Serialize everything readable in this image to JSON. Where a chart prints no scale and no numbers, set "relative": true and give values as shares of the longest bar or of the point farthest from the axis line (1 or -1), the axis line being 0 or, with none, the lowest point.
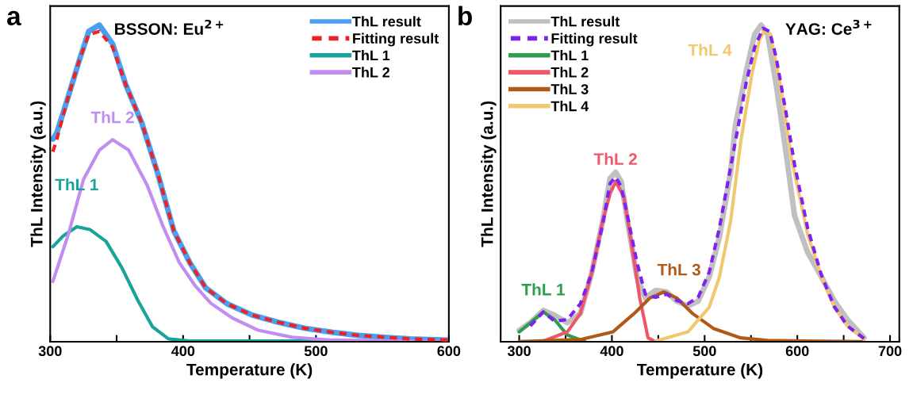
{
  "chart_data": [
    {
      "type": "line",
      "title": "BSSON: Eu$^{2+}$",
      "xlabel": "Temperature (K)",
      "ylabel": "ThL Intensity (a.u.)",
      "relative": true,
      "legend": "top right",
      "grid": false,
      "marker": "none",
      "xlim": [
        300,
        600
      ],
      "xticks": [
        300,
        {
          "value": 350,
          "label": null
        },
        400,
        {
          "value": 450,
          "label": null
        },
        500,
        {
          "value": 550,
          "label": null
        },
        600
      ],
      "annotations": [
        "a",
        "ThL 1",
        "ThL 2"
      ],
      "series": [
        {
          "name": "ThL result",
          "color": "#4a9ff0",
          "line_style": "solid",
          "x": [
            302,
            305,
            314,
            322,
            329,
            337,
            347,
            357,
            369,
            381,
            393,
            405,
            417,
            433,
            452,
            472,
            492,
            512,
            532,
            552,
            571,
            599
          ],
          "values": [
            0.64,
            0.66,
            0.78,
            0.89,
            0.98,
            1.0,
            0.94,
            0.81,
            0.69,
            0.53,
            0.35,
            0.25,
            0.17,
            0.12,
            0.084,
            0.061,
            0.042,
            0.03,
            0.02,
            0.014,
            0.009,
            0.005
          ]
        },
        {
          "name": "Fitting result",
          "color": "#ee2222",
          "line_style": "dashed",
          "x": [
            302,
            305,
            314,
            322,
            329,
            337,
            347,
            357,
            369,
            381,
            393,
            405,
            417,
            433,
            452,
            472,
            492,
            512,
            532,
            552,
            571,
            599
          ],
          "values": [
            0.6,
            0.64,
            0.78,
            0.89,
            0.97,
            0.98,
            0.93,
            0.81,
            0.69,
            0.53,
            0.35,
            0.25,
            0.17,
            0.12,
            0.084,
            0.061,
            0.042,
            0.03,
            0.02,
            0.014,
            0.009,
            0.005
          ]
        },
        {
          "name": "ThL 1",
          "color": "#1aa39a",
          "line_style": "solid",
          "x": [
            302,
            310,
            320,
            330,
            342,
            354,
            366,
            377,
            389,
            405,
            599
          ],
          "values": [
            0.3,
            0.335,
            0.363,
            0.354,
            0.317,
            0.233,
            0.13,
            0.047,
            0.009,
            0.002,
            0.002
          ]
        },
        {
          "name": "ThL 2",
          "color": "#c08ef0",
          "line_style": "solid",
          "x": [
            302,
            314,
            325,
            337,
            347,
            359,
            373,
            385,
            397,
            409,
            421,
            437,
            456,
            482,
            512,
            599
          ],
          "values": [
            0.19,
            0.344,
            0.512,
            0.605,
            0.638,
            0.605,
            0.494,
            0.363,
            0.251,
            0.177,
            0.121,
            0.075,
            0.037,
            0.014,
            0.005,
            0
          ]
        }
      ]
    },
    {
      "type": "line",
      "title": "YAG: Ce$^{3+}$",
      "xlabel": "Temperature (K)",
      "ylabel": "ThL Intensity (a.u.)",
      "relative": true,
      "legend": "top left",
      "grid": false,
      "marker": "none",
      "xlim": [
        280,
        710
      ],
      "xticks": [
        300,
        {
          "value": 350,
          "label": null
        },
        400,
        {
          "value": 450,
          "label": null
        },
        500,
        {
          "value": 550,
          "label": null
        },
        600,
        {
          "value": 650,
          "label": null
        },
        700
      ],
      "annotations": [
        "b",
        "ThL 1",
        "ThL 2",
        "ThL 3",
        "ThL 4"
      ],
      "series": [
        {
          "name": "ThL result",
          "color": "#c0c0c0",
          "line_style": "solid",
          "x": [
            300,
            312,
            326,
            338,
            352,
            366,
            378,
            390,
            398,
            404,
            410,
            418,
            427,
            436,
            447,
            459,
            470,
            482,
            493,
            505,
            516,
            528,
            533,
            545,
            554,
            561,
            568,
            577,
            588,
            597,
            611,
            626,
            640,
            654,
            672
          ],
          "values": [
            0.036,
            0.06,
            0.099,
            0.084,
            0.06,
            0.089,
            0.215,
            0.38,
            0.516,
            0.535,
            0.506,
            0.36,
            0.205,
            0.138,
            0.162,
            0.157,
            0.128,
            0.113,
            0.128,
            0.205,
            0.331,
            0.535,
            0.68,
            0.855,
            0.971,
            1.0,
            0.971,
            0.816,
            0.593,
            0.399,
            0.283,
            0.205,
            0.128,
            0.07,
            0.012
          ]
        },
        {
          "name": "Fitting result",
          "color": "#7f22ee",
          "line_style": "dashed",
          "x": [
            312,
            326,
            338,
            352,
            366,
            378,
            390,
            398,
            404,
            410,
            418,
            427,
            436,
            447,
            459,
            470,
            482,
            493,
            505,
            516,
            528,
            545,
            554,
            563,
            570,
            577,
            588,
            597,
            611,
            626,
            640,
            654,
            672
          ],
          "values": [
            0.05,
            0.094,
            0.065,
            0.07,
            0.12,
            0.215,
            0.37,
            0.5,
            0.52,
            0.49,
            0.38,
            0.25,
            0.15,
            0.14,
            0.15,
            0.13,
            0.12,
            0.14,
            0.22,
            0.36,
            0.55,
            0.82,
            0.93,
            0.99,
            0.98,
            0.9,
            0.72,
            0.56,
            0.36,
            0.21,
            0.11,
            0.05,
            0.01
          ]
        },
        {
          "name": "ThL 1",
          "color": "#2e9e4e",
          "line_style": "solid",
          "x": [
            300,
            312,
            326,
            338,
            352,
            371
          ],
          "values": [
            0.031,
            0.06,
            0.094,
            0.07,
            0.021,
            0
          ]
        },
        {
          "name": "ThL 2",
          "color": "#f0566a",
          "line_style": "solid",
          "x": [
            326,
            352,
            366,
            378,
            390,
            398,
            404,
            413,
            421,
            430,
            439,
            447
          ],
          "values": [
            0.002,
            0.031,
            0.089,
            0.215,
            0.38,
            0.467,
            0.506,
            0.457,
            0.312,
            0.138,
            0.012,
            0
          ]
        },
        {
          "name": "ThL 3",
          "color": "#b05a1a",
          "line_style": "solid",
          "x": [
            300,
            366,
            401,
            424,
            441,
            456,
            470,
            487,
            510,
            539,
            568,
            672
          ],
          "values": [
            0,
            0.007,
            0.031,
            0.089,
            0.138,
            0.157,
            0.138,
            0.089,
            0.041,
            0.012,
            0.004,
            0
          ]
        },
        {
          "name": "ThL 4",
          "color": "#f0c870",
          "line_style": "solid",
          "x": [
            447,
            482,
            505,
            516,
            528,
            539,
            551,
            559,
            565,
            571,
            582,
            594,
            611,
            626,
            640,
            654,
            672
          ],
          "values": [
            0.002,
            0.031,
            0.109,
            0.205,
            0.38,
            0.632,
            0.845,
            0.952,
            0.986,
            0.971,
            0.806,
            0.574,
            0.341,
            0.205,
            0.109,
            0.05,
            0.007
          ]
        }
      ]
    }
  ]
}
